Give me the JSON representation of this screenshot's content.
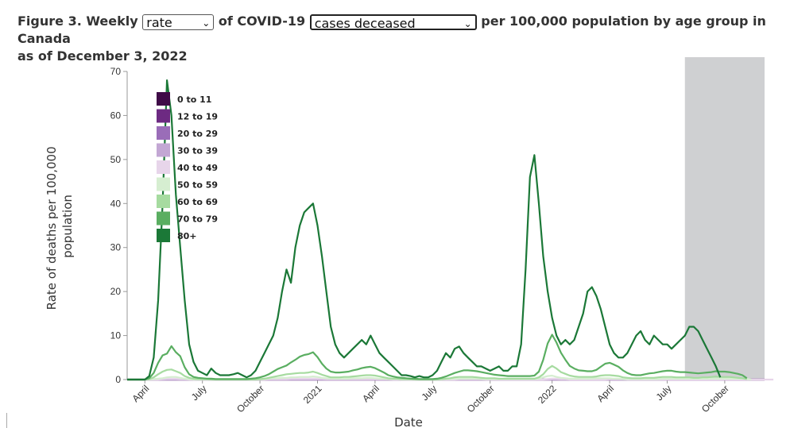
{
  "figure": {
    "prefix": "Figure 3. Weekly",
    "measure_select": "rate",
    "mid_text": "of COVID-19",
    "outcome_select": "cases deceased",
    "suffix": "per 100,000 population by age group in Canada",
    "subtitle": "as of December 3, 2022",
    "chevron_icon": "chevron-down-icon"
  },
  "chart_data": {
    "type": "line",
    "title": "",
    "xlabel": "Date",
    "ylabel": "Rate of deaths per 100,000 population",
    "ylim": [
      0,
      70
    ],
    "yticks": [
      0,
      10,
      20,
      30,
      40,
      50,
      60,
      70
    ],
    "x_tick_labels": [
      "April",
      "July",
      "October",
      "2021",
      "April",
      "July",
      "October",
      "2022",
      "April",
      "July",
      "October"
    ],
    "x_tick_weeks": [
      4,
      17,
      30,
      43,
      56,
      69,
      82,
      96,
      109,
      122,
      135
    ],
    "shaded_region_weeks": [
      126,
      144
    ],
    "legend_position": "top-left",
    "grid": false,
    "series": [
      {
        "name": "0 to 11",
        "color": "#3f0b47",
        "values": [
          0,
          0,
          0,
          0,
          0,
          0,
          0,
          0,
          0,
          0,
          0,
          0,
          0,
          0,
          0,
          0,
          0,
          0,
          0,
          0,
          0,
          0,
          0,
          0,
          0,
          0,
          0,
          0,
          0,
          0,
          0,
          0,
          0,
          0,
          0,
          0,
          0,
          0,
          0,
          0,
          0,
          0,
          0,
          0,
          0,
          0,
          0,
          0,
          0,
          0,
          0,
          0,
          0,
          0,
          0,
          0,
          0,
          0,
          0,
          0,
          0,
          0,
          0,
          0,
          0,
          0,
          0,
          0,
          0,
          0,
          0,
          0,
          0,
          0,
          0,
          0,
          0,
          0,
          0,
          0,
          0,
          0,
          0,
          0,
          0,
          0,
          0,
          0,
          0,
          0,
          0,
          0,
          0,
          0,
          0,
          0,
          0,
          0,
          0,
          0,
          0,
          0,
          0,
          0,
          0,
          0,
          0,
          0,
          0,
          0,
          0,
          0,
          0,
          0,
          0,
          0,
          0,
          0,
          0,
          0,
          0,
          0,
          0,
          0,
          0,
          0,
          0,
          0,
          0,
          0,
          0,
          0,
          0,
          0,
          0,
          0,
          0,
          0,
          0,
          0,
          0,
          0,
          0,
          0,
          0
        ]
      },
      {
        "name": "12 to 19",
        "color": "#6d2a82",
        "values": [
          0,
          0,
          0,
          0,
          0,
          0,
          0,
          0,
          0,
          0,
          0,
          0,
          0,
          0,
          0,
          0,
          0,
          0,
          0,
          0,
          0,
          0,
          0,
          0,
          0,
          0,
          0,
          0,
          0,
          0,
          0,
          0,
          0,
          0,
          0,
          0,
          0,
          0,
          0,
          0,
          0,
          0,
          0,
          0,
          0,
          0,
          0,
          0,
          0,
          0,
          0,
          0,
          0,
          0,
          0,
          0,
          0,
          0,
          0,
          0,
          0,
          0,
          0,
          0,
          0,
          0,
          0,
          0,
          0,
          0,
          0,
          0,
          0,
          0,
          0,
          0,
          0,
          0,
          0,
          0,
          0,
          0,
          0,
          0,
          0,
          0,
          0,
          0,
          0,
          0,
          0,
          0,
          0,
          0,
          0,
          0,
          0,
          0,
          0,
          0,
          0,
          0,
          0,
          0,
          0,
          0,
          0,
          0,
          0,
          0,
          0,
          0,
          0,
          0,
          0,
          0,
          0,
          0,
          0,
          0,
          0,
          0,
          0,
          0,
          0,
          0,
          0,
          0,
          0,
          0,
          0,
          0,
          0,
          0,
          0,
          0,
          0,
          0,
          0,
          0,
          0,
          0,
          0,
          0,
          0
        ]
      },
      {
        "name": "20 to 29",
        "color": "#9a6db8",
        "values": [
          0,
          0,
          0,
          0,
          0,
          0,
          0,
          0,
          0,
          0,
          0,
          0,
          0,
          0,
          0,
          0,
          0,
          0,
          0,
          0,
          0,
          0,
          0,
          0,
          0,
          0,
          0,
          0,
          0,
          0,
          0,
          0,
          0,
          0,
          0,
          0,
          0,
          0,
          0,
          0,
          0,
          0,
          0,
          0,
          0,
          0,
          0,
          0,
          0,
          0,
          0,
          0,
          0,
          0,
          0,
          0,
          0,
          0,
          0,
          0,
          0,
          0,
          0,
          0,
          0,
          0,
          0,
          0,
          0,
          0,
          0,
          0,
          0,
          0,
          0,
          0,
          0,
          0,
          0,
          0,
          0,
          0,
          0,
          0,
          0,
          0,
          0,
          0,
          0,
          0,
          0,
          0,
          0,
          0,
          0,
          0,
          0,
          0,
          0,
          0,
          0,
          0,
          0,
          0,
          0,
          0,
          0,
          0,
          0,
          0,
          0,
          0,
          0,
          0,
          0,
          0,
          0,
          0,
          0,
          0,
          0,
          0,
          0,
          0,
          0,
          0,
          0,
          0,
          0,
          0,
          0,
          0,
          0,
          0,
          0,
          0,
          0,
          0,
          0,
          0,
          0,
          0,
          0,
          0,
          0
        ]
      },
      {
        "name": "30 to 39",
        "color": "#c3a7d4",
        "values": [
          0,
          0,
          0,
          0,
          0,
          0,
          0,
          0,
          0,
          0,
          0,
          0,
          0,
          0,
          0,
          0,
          0,
          0,
          0,
          0,
          0,
          0,
          0,
          0,
          0,
          0,
          0,
          0,
          0,
          0,
          0,
          0,
          0,
          0,
          0,
          0,
          0,
          0,
          0,
          0,
          0,
          0,
          0,
          0,
          0,
          0,
          0,
          0,
          0,
          0,
          0,
          0,
          0,
          0,
          0,
          0,
          0,
          0,
          0,
          0,
          0,
          0,
          0,
          0,
          0,
          0,
          0,
          0,
          0,
          0,
          0,
          0,
          0,
          0,
          0,
          0,
          0,
          0,
          0,
          0,
          0,
          0,
          0,
          0,
          0,
          0,
          0,
          0,
          0,
          0,
          0,
          0,
          0,
          0,
          0,
          0,
          0,
          0,
          0,
          0,
          0,
          0,
          0,
          0,
          0,
          0,
          0,
          0,
          0,
          0,
          0,
          0,
          0,
          0,
          0,
          0,
          0,
          0,
          0,
          0,
          0,
          0,
          0,
          0,
          0,
          0,
          0,
          0,
          0,
          0,
          0,
          0,
          0,
          0,
          0,
          0,
          0,
          0,
          0,
          0,
          0,
          0,
          0,
          0,
          0
        ]
      },
      {
        "name": "40 to 49",
        "color": "#e7d5ea",
        "values": [
          0,
          0,
          0,
          0,
          0,
          0,
          0,
          0,
          0.1,
          0.2,
          0.2,
          0.2,
          0.1,
          0.1,
          0,
          0,
          0,
          0,
          0,
          0,
          0,
          0,
          0,
          0,
          0,
          0,
          0,
          0,
          0,
          0,
          0,
          0,
          0.1,
          0.1,
          0.1,
          0.1,
          0.1,
          0.2,
          0.2,
          0.2,
          0.2,
          0.2,
          0.2,
          0.2,
          0.2,
          0.1,
          0.1,
          0.1,
          0.1,
          0.1,
          0.1,
          0.1,
          0.1,
          0.1,
          0.1,
          0.1,
          0.1,
          0.1,
          0.1,
          0.1,
          0,
          0,
          0,
          0,
          0,
          0,
          0,
          0,
          0,
          0,
          0,
          0,
          0,
          0,
          0,
          0.1,
          0.1,
          0.1,
          0.1,
          0.1,
          0.1,
          0,
          0,
          0,
          0,
          0,
          0,
          0,
          0,
          0,
          0,
          0,
          0,
          0,
          0,
          0.1,
          0.2,
          0.2,
          0.1,
          0.1,
          0,
          0,
          0,
          0,
          0,
          0,
          0,
          0,
          0,
          0.1,
          0.1,
          0.1,
          0.1,
          0,
          0,
          0,
          0,
          0,
          0,
          0,
          0,
          0,
          0,
          0,
          0,
          0,
          0,
          0,
          0,
          0,
          0,
          0,
          0,
          0,
          0,
          0,
          0,
          0,
          0,
          0,
          0,
          0,
          0,
          0,
          0,
          0,
          0
        ]
      },
      {
        "name": "50 to 59",
        "color": "#d6eed1",
        "values": [
          0,
          0,
          0,
          0,
          0,
          0,
          0.1,
          0.2,
          0.3,
          0.5,
          0.6,
          0.6,
          0.4,
          0.2,
          0.1,
          0,
          0,
          0,
          0,
          0,
          0,
          0,
          0,
          0,
          0,
          0,
          0,
          0,
          0,
          0,
          0,
          0.1,
          0.2,
          0.3,
          0.3,
          0.4,
          0.4,
          0.5,
          0.5,
          0.6,
          0.6,
          0.6,
          0.7,
          0.6,
          0.4,
          0.3,
          0.2,
          0.2,
          0.2,
          0.2,
          0.2,
          0.3,
          0.3,
          0.3,
          0.4,
          0.4,
          0.3,
          0.2,
          0.2,
          0.1,
          0.1,
          0.1,
          0,
          0,
          0,
          0,
          0,
          0,
          0,
          0,
          0,
          0,
          0.1,
          0.1,
          0.2,
          0.2,
          0.2,
          0.2,
          0.2,
          0.2,
          0.1,
          0.1,
          0.1,
          0.1,
          0.1,
          0.1,
          0.1,
          0.1,
          0.1,
          0.1,
          0.1,
          0.1,
          0.1,
          0.2,
          0.5,
          0.8,
          0.9,
          0.6,
          0.4,
          0.3,
          0.2,
          0.2,
          0.2,
          0.2,
          0.2,
          0.2,
          0.3,
          0.3,
          0.3,
          0.3,
          0.2,
          0.2,
          0.1,
          0.1,
          0.1,
          0.1,
          0.1,
          0.1,
          0.1,
          0.1,
          0.1,
          0.2,
          0.2,
          0.2,
          0.2,
          0.2,
          0.2,
          0.2,
          0.2,
          0.2,
          0.2,
          0.2,
          0.2,
          0.2,
          0.2,
          0.2,
          0.2,
          0.2,
          0.2,
          0.2,
          0.1,
          0
        ]
      },
      {
        "name": "60 to 69",
        "color": "#a6dba0",
        "values": [
          0,
          0,
          0,
          0,
          0,
          0.1,
          0.5,
          1.2,
          1.8,
          2.2,
          2.3,
          1.9,
          1.5,
          0.8,
          0.4,
          0.2,
          0.1,
          0.1,
          0.1,
          0,
          0,
          0,
          0,
          0,
          0,
          0,
          0,
          0,
          0,
          0,
          0.1,
          0.2,
          0.4,
          0.6,
          0.8,
          1,
          1.2,
          1.3,
          1.4,
          1.5,
          1.5,
          1.6,
          1.8,
          1.5,
          1.1,
          0.8,
          0.5,
          0.5,
          0.5,
          0.6,
          0.6,
          0.7,
          0.8,
          0.9,
          1,
          1,
          0.9,
          0.7,
          0.5,
          0.3,
          0.2,
          0.2,
          0.1,
          0.1,
          0.1,
          0,
          0,
          0,
          0,
          0,
          0,
          0.1,
          0.2,
          0.3,
          0.5,
          0.6,
          0.6,
          0.6,
          0.6,
          0.5,
          0.4,
          0.3,
          0.3,
          0.3,
          0.2,
          0.2,
          0.2,
          0.2,
          0.2,
          0.2,
          0.2,
          0.2,
          0.2,
          0.5,
          1.2,
          2.4,
          3.1,
          2.5,
          1.7,
          1.3,
          0.9,
          0.7,
          0.6,
          0.6,
          0.6,
          0.6,
          0.7,
          0.9,
          1,
          1,
          0.9,
          0.8,
          0.5,
          0.4,
          0.3,
          0.3,
          0.3,
          0.4,
          0.4,
          0.4,
          0.5,
          0.6,
          0.6,
          0.6,
          0.5,
          0.5,
          0.5,
          0.5,
          0.4,
          0.4,
          0.5,
          0.5,
          0.6,
          0.7,
          0.6,
          0.6,
          0.6,
          0.5,
          0.4,
          0.3,
          0.1
        ]
      },
      {
        "name": "70 to 79",
        "color": "#5aae61",
        "values": [
          0,
          0,
          0,
          0,
          0,
          0.3,
          1.5,
          3.8,
          5.5,
          5.9,
          7.6,
          6.2,
          5.3,
          2.8,
          1.2,
          0.6,
          0.4,
          0.3,
          0.2,
          0.2,
          0.1,
          0.1,
          0.1,
          0.1,
          0.1,
          0.1,
          0.1,
          0.1,
          0.2,
          0.3,
          0.5,
          0.8,
          1.2,
          1.8,
          2.4,
          2.8,
          3.2,
          3.9,
          4.5,
          5.2,
          5.6,
          5.8,
          6.2,
          5.1,
          3.6,
          2.5,
          1.8,
          1.6,
          1.6,
          1.7,
          1.8,
          2.1,
          2.3,
          2.6,
          2.8,
          2.9,
          2.6,
          2.1,
          1.6,
          1,
          0.7,
          0.5,
          0.4,
          0.3,
          0.2,
          0.2,
          0.1,
          0.1,
          0.1,
          0.1,
          0.2,
          0.4,
          0.7,
          1.1,
          1.5,
          1.8,
          2.1,
          2.1,
          2,
          1.9,
          1.7,
          1.5,
          1.3,
          1.1,
          1,
          0.9,
          0.8,
          0.8,
          0.8,
          0.8,
          0.8,
          0.8,
          0.9,
          1.8,
          4.5,
          8.2,
          10.2,
          8.4,
          6.1,
          4.5,
          3.1,
          2.5,
          2.1,
          2,
          1.9,
          1.9,
          2.2,
          2.9,
          3.6,
          3.8,
          3.4,
          2.9,
          2.1,
          1.5,
          1.1,
          1,
          1,
          1.2,
          1.4,
          1.5,
          1.7,
          1.9,
          2,
          2,
          1.8,
          1.7,
          1.7,
          1.6,
          1.5,
          1.4,
          1.5,
          1.6,
          1.7,
          1.9,
          1.8,
          1.8,
          1.7,
          1.5,
          1.3,
          1,
          0.3
        ]
      },
      {
        "name": "80+",
        "color": "#1b7837",
        "values": [
          0,
          0,
          0,
          0,
          0,
          0.8,
          5,
          18,
          40,
          68,
          60,
          42,
          30,
          18,
          8,
          4,
          2,
          1.5,
          1,
          2.5,
          1.5,
          1,
          1,
          1,
          1.2,
          1.5,
          1,
          0.5,
          1,
          2,
          4,
          6,
          8,
          10,
          14,
          20,
          25,
          22,
          30,
          35,
          38,
          39,
          40,
          35,
          28,
          20,
          12,
          8,
          6,
          5,
          6,
          7,
          8,
          9,
          8,
          10,
          8,
          6,
          5,
          4,
          3,
          2,
          1,
          1,
          0.8,
          0.5,
          0.8,
          0.5,
          0.5,
          1,
          2,
          4,
          6,
          5,
          7,
          7.5,
          6,
          5,
          4,
          3,
          3,
          2.5,
          2,
          2.5,
          3,
          2,
          2,
          3,
          3,
          8,
          25,
          46,
          51,
          40,
          28,
          20,
          14,
          10,
          8,
          9,
          8,
          9,
          12,
          15,
          20,
          21,
          19,
          16,
          12,
          8,
          6,
          5,
          5,
          6,
          8,
          10,
          11,
          9,
          8,
          10,
          9,
          8,
          8,
          7,
          8,
          9,
          10,
          12,
          12,
          11,
          9,
          7,
          5,
          3,
          0.5
        ]
      }
    ]
  }
}
